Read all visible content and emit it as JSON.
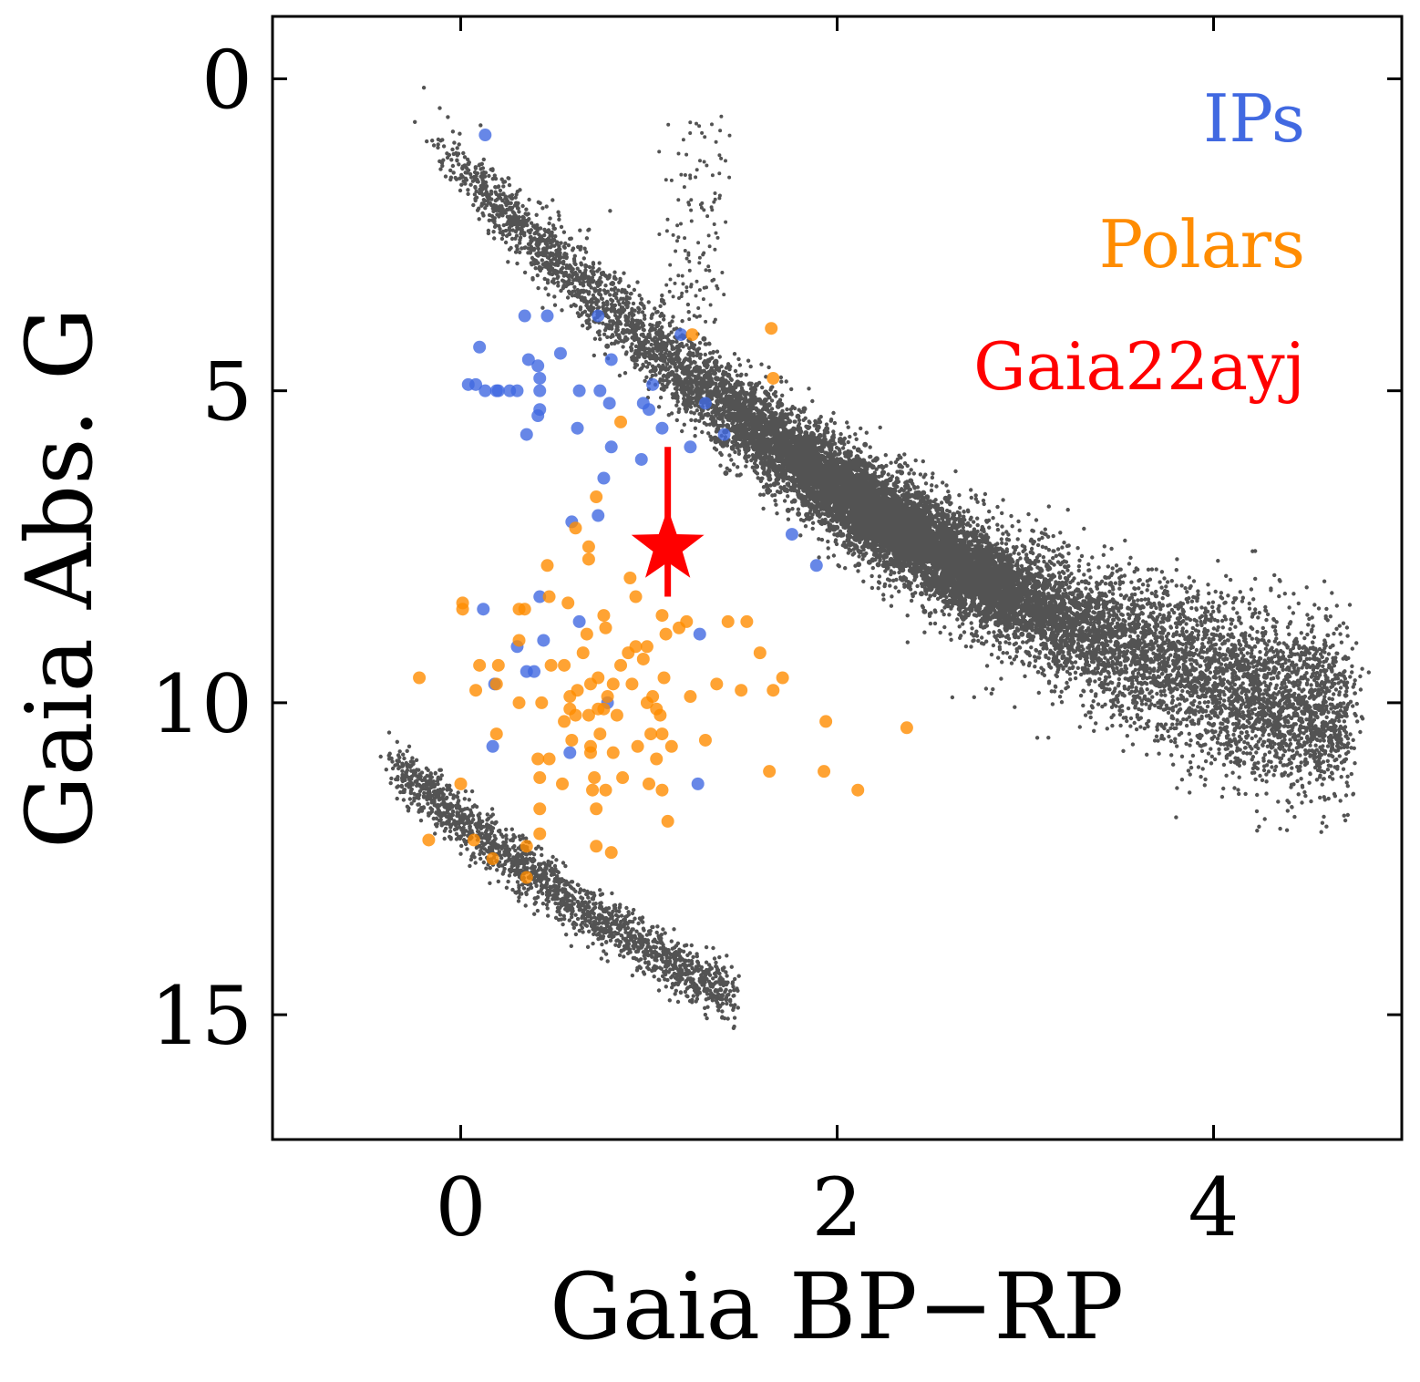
{
  "chart_data": {
    "type": "scatter",
    "xlabel": "Gaia BP−RP",
    "ylabel": "Gaia Abs. G",
    "xlim": [
      -1.0,
      5.0
    ],
    "ylim": [
      17.0,
      -1.0
    ],
    "y_inverted": true,
    "xticks": [
      0,
      2,
      4
    ],
    "yticks": [
      0,
      5,
      10,
      15
    ],
    "tick_direction": "in",
    "ticks_on_all_sides": true,
    "grid": false,
    "legend_position": "top-right",
    "legend_style": "colored-text",
    "colors": {
      "background_stars": "#1a1a1a",
      "ips": "#4169e1",
      "polars": "#ff8c00",
      "target": "#ff0000"
    },
    "series": [
      {
        "name": "IPs",
        "color": "#4169e1",
        "marker": "circle",
        "points": [
          [
            0.13,
            0.9
          ],
          [
            0.34,
            3.8
          ],
          [
            0.46,
            3.8
          ],
          [
            0.1,
            4.3
          ],
          [
            0.36,
            4.5
          ],
          [
            0.41,
            4.6
          ],
          [
            0.53,
            4.4
          ],
          [
            0.73,
            3.8
          ],
          [
            0.42,
            4.8
          ],
          [
            0.08,
            4.9
          ],
          [
            0.04,
            4.9
          ],
          [
            0.26,
            5.0
          ],
          [
            0.42,
            5.0
          ],
          [
            0.3,
            5.0
          ],
          [
            0.19,
            5.0
          ],
          [
            0.13,
            5.0
          ],
          [
            0.63,
            5.0
          ],
          [
            0.74,
            5.0
          ],
          [
            0.42,
            5.3
          ],
          [
            0.41,
            5.4
          ],
          [
            0.62,
            5.6
          ],
          [
            0.2,
            5.0
          ],
          [
            0.35,
            5.7
          ],
          [
            0.8,
            4.5
          ],
          [
            0.97,
            5.2
          ],
          [
            1.0,
            5.3
          ],
          [
            1.07,
            5.6
          ],
          [
            1.3,
            5.2
          ],
          [
            0.96,
            6.1
          ],
          [
            1.22,
            5.9
          ],
          [
            1.4,
            5.7
          ],
          [
            0.8,
            5.9
          ],
          [
            0.79,
            5.2
          ],
          [
            1.17,
            4.1
          ],
          [
            0.76,
            6.4
          ],
          [
            0.73,
            7.0
          ],
          [
            0.59,
            7.1
          ],
          [
            1.76,
            7.3
          ],
          [
            1.89,
            7.8
          ],
          [
            0.42,
            8.3
          ],
          [
            0.63,
            8.7
          ],
          [
            0.12,
            8.5
          ],
          [
            0.44,
            9.0
          ],
          [
            0.3,
            9.1
          ],
          [
            0.35,
            9.5
          ],
          [
            0.39,
            9.5
          ],
          [
            0.18,
            9.7
          ],
          [
            0.78,
            10.0
          ],
          [
            0.58,
            10.8
          ],
          [
            0.17,
            10.7
          ],
          [
            1.26,
            11.3
          ],
          [
            1.27,
            8.9
          ],
          [
            1.02,
            4.9
          ]
        ]
      },
      {
        "name": "Polars",
        "color": "#ff8c00",
        "marker": "circle",
        "points": [
          [
            1.65,
            4.0
          ],
          [
            1.66,
            4.8
          ],
          [
            1.23,
            4.1
          ],
          [
            0.85,
            5.5
          ],
          [
            0.72,
            6.7
          ],
          [
            0.61,
            7.2
          ],
          [
            0.68,
            7.5
          ],
          [
            0.68,
            7.7
          ],
          [
            0.46,
            7.8
          ],
          [
            0.9,
            8.0
          ],
          [
            0.93,
            8.3
          ],
          [
            0.47,
            8.3
          ],
          [
            0.01,
            8.4
          ],
          [
            0.01,
            8.5
          ],
          [
            0.34,
            8.5
          ],
          [
            0.31,
            8.5
          ],
          [
            0.57,
            8.4
          ],
          [
            0.76,
            8.6
          ],
          [
            1.07,
            8.6
          ],
          [
            1.2,
            8.7
          ],
          [
            1.16,
            8.8
          ],
          [
            1.42,
            8.7
          ],
          [
            1.52,
            8.7
          ],
          [
            0.77,
            8.8
          ],
          [
            0.67,
            8.9
          ],
          [
            1.09,
            8.9
          ],
          [
            0.93,
            9.1
          ],
          [
            0.99,
            9.1
          ],
          [
            0.31,
            9.0
          ],
          [
            0.89,
            9.2
          ],
          [
            0.97,
            9.3
          ],
          [
            1.59,
            9.2
          ],
          [
            0.1,
            9.4
          ],
          [
            0.2,
            9.4
          ],
          [
            0.48,
            9.4
          ],
          [
            0.55,
            9.4
          ],
          [
            0.65,
            9.2
          ],
          [
            0.85,
            9.4
          ],
          [
            1.08,
            9.6
          ],
          [
            0.73,
            9.6
          ],
          [
            0.81,
            9.7
          ],
          [
            0.69,
            9.7
          ],
          [
            0.62,
            9.8
          ],
          [
            0.91,
            9.7
          ],
          [
            1.36,
            9.7
          ],
          [
            1.49,
            9.8
          ],
          [
            1.71,
            9.6
          ],
          [
            -0.22,
            9.6
          ],
          [
            0.08,
            9.8
          ],
          [
            0.19,
            9.7
          ],
          [
            0.58,
            9.9
          ],
          [
            0.78,
            9.9
          ],
          [
            1.02,
            9.9
          ],
          [
            1.22,
            9.9
          ],
          [
            1.66,
            9.8
          ],
          [
            0.43,
            10.0
          ],
          [
            0.31,
            10.0
          ],
          [
            0.58,
            10.1
          ],
          [
            0.73,
            10.1
          ],
          [
            0.76,
            10.1
          ],
          [
            0.99,
            10.0
          ],
          [
            1.04,
            10.1
          ],
          [
            0.68,
            10.2
          ],
          [
            0.61,
            10.2
          ],
          [
            0.83,
            10.2
          ],
          [
            1.06,
            10.2
          ],
          [
            1.94,
            10.3
          ],
          [
            0.55,
            10.3
          ],
          [
            0.19,
            10.5
          ],
          [
            0.74,
            10.5
          ],
          [
            1.01,
            10.5
          ],
          [
            1.07,
            10.5
          ],
          [
            0.59,
            10.6
          ],
          [
            0.69,
            10.7
          ],
          [
            0.94,
            10.7
          ],
          [
            1.12,
            10.7
          ],
          [
            1.3,
            10.6
          ],
          [
            0.69,
            10.8
          ],
          [
            0.81,
            10.8
          ],
          [
            0.41,
            10.9
          ],
          [
            0.47,
            10.9
          ],
          [
            1.04,
            10.9
          ],
          [
            1.64,
            11.1
          ],
          [
            1.93,
            11.1
          ],
          [
            0.42,
            11.2
          ],
          [
            0.54,
            11.3
          ],
          [
            0.71,
            11.2
          ],
          [
            0.86,
            11.2
          ],
          [
            0.7,
            11.4
          ],
          [
            1.0,
            11.3
          ],
          [
            1.07,
            11.4
          ],
          [
            0.0,
            11.3
          ],
          [
            0.77,
            11.4
          ],
          [
            2.11,
            11.4
          ],
          [
            0.42,
            11.7
          ],
          [
            0.72,
            11.7
          ],
          [
            1.1,
            11.9
          ],
          [
            0.42,
            12.1
          ],
          [
            0.07,
            12.2
          ],
          [
            -0.17,
            12.2
          ],
          [
            0.35,
            12.3
          ],
          [
            0.72,
            12.3
          ],
          [
            0.8,
            12.4
          ],
          [
            0.17,
            12.5
          ],
          [
            0.35,
            12.8
          ],
          [
            2.37,
            10.4
          ]
        ]
      },
      {
        "name": "Gaia22ayj",
        "color": "#ff0000",
        "marker": "star",
        "points": [
          [
            1.1,
            7.5
          ]
        ],
        "yerr_range": [
          5.9,
          8.3
        ]
      }
    ]
  },
  "legend": {
    "items": [
      {
        "label": "IPs",
        "color": "#4169e1"
      },
      {
        "label": "Polars",
        "color": "#ff8c00"
      },
      {
        "label": "Gaia22ayj",
        "color": "#ff0000"
      }
    ]
  }
}
